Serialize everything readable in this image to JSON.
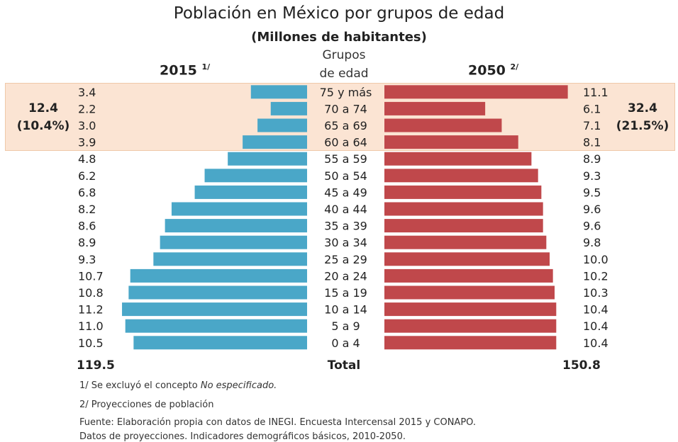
{
  "title": "Población en México por grupos de edad",
  "subtitle": "(Millones de habitantes)",
  "left_year": "2015",
  "left_note": "1/",
  "right_year": "2050",
  "right_note": "2/",
  "groups_header_line1": "Grupos",
  "groups_header_line2": "de edad",
  "aggregates": {
    "left_value": "12.4",
    "left_percent": "(10.4%)",
    "right_value": "32.4",
    "right_percent": "(21.5%)"
  },
  "totals": {
    "label": "Total",
    "left": "119.5",
    "right": "150.8"
  },
  "notes": {
    "note1_prefix": "1/ Se excluyó el concepto ",
    "note1_italic": "No especificado.",
    "note2": "2/ Proyecciones de población",
    "source_line1": "Fuente: Elaboración propia con datos de INEGI. Encuesta Intercensal 2015 y CONAPO.",
    "source_line2": "Datos de proyecciones. Indicadores demográficos básicos, 2010-2050."
  },
  "colors": {
    "left_bar": "#4aa7c8",
    "right_bar": "#c0484b",
    "highlight": "#fbe4d3"
  },
  "chart_data": {
    "type": "bar",
    "orientation": "horizontal-pyramid",
    "categories": [
      "75 y más",
      "70 a 74",
      "65 a 69",
      "60 a 64",
      "55 a 59",
      "50 a 54",
      "45 a 49",
      "40 a 44",
      "35 a 39",
      "30 a 34",
      "25 a 29",
      "20 a 24",
      "15 a 19",
      "10 a 14",
      "5 a 9",
      "0 a 4"
    ],
    "series": [
      {
        "name": "2015",
        "values": [
          3.4,
          2.2,
          3.0,
          3.9,
          4.8,
          6.2,
          6.8,
          8.2,
          8.6,
          8.9,
          9.3,
          10.7,
          10.8,
          11.2,
          11.0,
          10.5
        ]
      },
      {
        "name": "2050",
        "values": [
          11.1,
          6.1,
          7.1,
          8.1,
          8.9,
          9.3,
          9.5,
          9.6,
          9.6,
          9.8,
          10.0,
          10.2,
          10.3,
          10.4,
          10.4,
          10.4
        ]
      }
    ],
    "value_labels_left": [
      "3.4",
      "2.2",
      "3.0",
      "3.9",
      "4.8",
      "6.2",
      "6.8",
      "8.2",
      "8.6",
      "8.9",
      "9.3",
      "10.7",
      "10.8",
      "11.2",
      "11.0",
      "10.5"
    ],
    "value_labels_right": [
      "11.1",
      "6.1",
      "7.1",
      "8.1",
      "8.9",
      "9.3",
      "9.5",
      "9.6",
      "9.6",
      "9.8",
      "10.0",
      "10.2",
      "10.3",
      "10.4",
      "10.4",
      "10.4"
    ],
    "highlighted_groups": [
      "75 y más",
      "70 a 74",
      "65 a 69",
      "60 a 64"
    ],
    "grid": false,
    "legend": "none"
  }
}
